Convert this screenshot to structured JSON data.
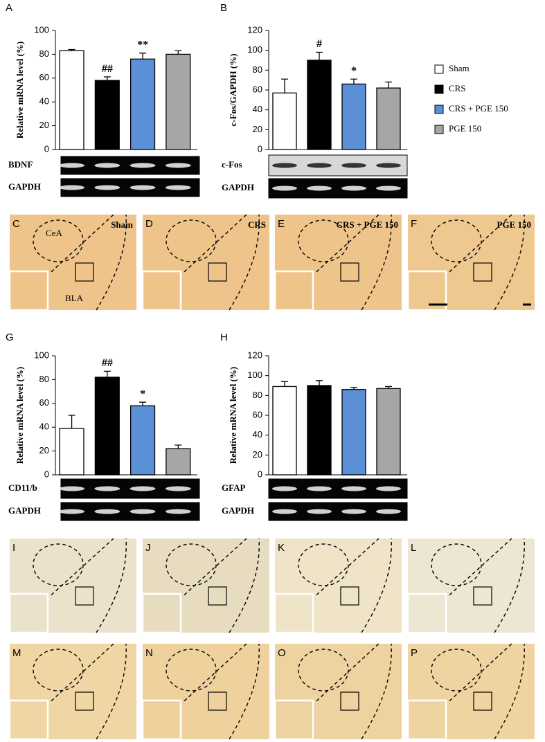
{
  "chart_data": [
    {
      "type": "bar",
      "panel": "A",
      "ylabel": "Relative mRNA level (%)",
      "values": [
        83,
        58,
        76,
        80
      ],
      "errors": [
        1,
        3,
        5,
        3
      ],
      "annotations": [
        null,
        "##",
        "**",
        null
      ],
      "ylim": [
        0,
        100
      ],
      "yticks": [
        0,
        20,
        40,
        60,
        80,
        100
      ],
      "gels": [
        "BDNF",
        "GAPDH"
      ]
    },
    {
      "type": "bar",
      "panel": "B",
      "ylabel": "c-Fos/GAPDH (%)",
      "values": [
        57,
        90,
        66,
        62
      ],
      "errors": [
        14,
        8,
        5,
        6
      ],
      "annotations": [
        null,
        "#",
        "*",
        null
      ],
      "ylim": [
        0,
        120
      ],
      "yticks": [
        0,
        20,
        40,
        60,
        80,
        100,
        120
      ],
      "gels": [
        "c-Fos",
        "GAPDH"
      ]
    },
    {
      "type": "bar",
      "panel": "G",
      "ylabel": "Relative mRNA level (%)",
      "values": [
        39,
        82,
        58,
        22
      ],
      "errors": [
        11,
        5,
        3,
        3
      ],
      "annotations": [
        null,
        "##",
        "*",
        null
      ],
      "ylim": [
        0,
        100
      ],
      "yticks": [
        0,
        20,
        40,
        60,
        80,
        100
      ],
      "gels": [
        "CD11/b",
        "GAPDH"
      ]
    },
    {
      "type": "bar",
      "panel": "H",
      "ylabel": "Relative mRNA level (%)",
      "values": [
        89,
        90,
        86,
        87
      ],
      "errors": [
        5,
        5,
        2,
        2
      ],
      "annotations": [
        null,
        null,
        null,
        null
      ],
      "ylim": [
        0,
        120
      ],
      "yticks": [
        0,
        20,
        40,
        60,
        80,
        100,
        120
      ],
      "gels": [
        "GFAP",
        "GAPDH"
      ]
    }
  ],
  "legend": [
    {
      "name": "Sham",
      "color": "#ffffff"
    },
    {
      "name": "CRS",
      "color": "#000000"
    },
    {
      "name": "CRS + PGE 150",
      "color": "#5b8fd6"
    },
    {
      "name": "PGE 150",
      "color": "#a6a6a6"
    }
  ],
  "micrographs": [
    {
      "label": "C",
      "group": "Sham",
      "color": "#eec48a",
      "regions": [
        "CeA",
        "BLA"
      ]
    },
    {
      "label": "D",
      "group": "CRS",
      "color": "#eec48a"
    },
    {
      "label": "E",
      "group": "CRS + PGE 150",
      "color": "#eec48a"
    },
    {
      "label": "F",
      "group": "PGE 150",
      "color": "#efc890"
    },
    {
      "label": "I",
      "color": "#ebe2cc"
    },
    {
      "label": "J",
      "color": "#e8dcc0"
    },
    {
      "label": "K",
      "color": "#efe3c8"
    },
    {
      "label": "L",
      "color": "#ece6d2"
    },
    {
      "label": "M",
      "color": "#efd6a4"
    },
    {
      "label": "N",
      "color": "#eed19c"
    },
    {
      "label": "O",
      "color": "#eed2a0"
    },
    {
      "label": "P",
      "color": "#efd4a2"
    }
  ]
}
